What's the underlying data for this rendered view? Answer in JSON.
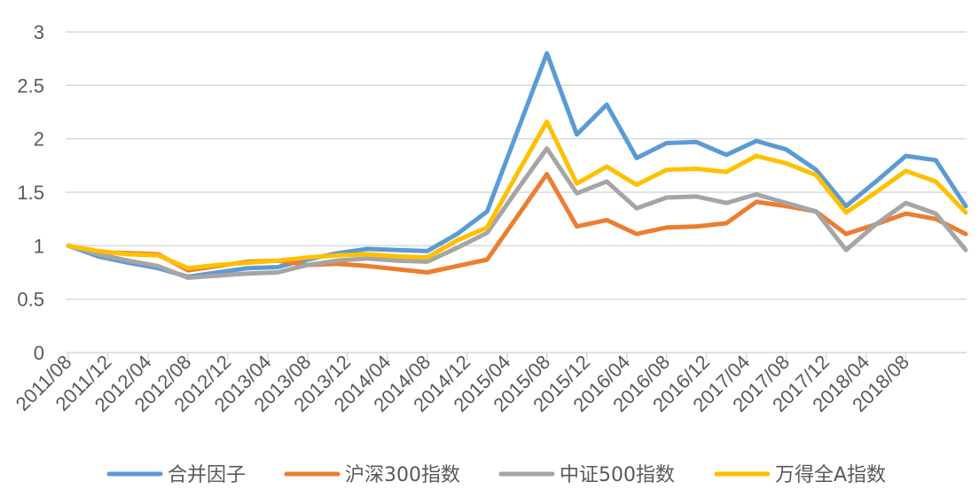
{
  "chart_data": {
    "type": "line",
    "title": "",
    "xlabel": "",
    "ylabel": "",
    "ylim": [
      0,
      3
    ],
    "yticks": [
      "0",
      "0.5",
      "1",
      "1.5",
      "2",
      "2.5",
      "3"
    ],
    "ytick_values": [
      0,
      0.5,
      1,
      1.5,
      2,
      2.5,
      3
    ],
    "grid": true,
    "legend_position": "bottom",
    "x_count": 31,
    "xtick_labels": [
      "2011/08",
      "2011/12",
      "2012/04",
      "2012/08",
      "2012/12",
      "2013/04",
      "2013/08",
      "2013/12",
      "2014/04",
      "2014/08",
      "2014/12",
      "2015/04",
      "2015/08",
      "2015/12",
      "2016/04",
      "2016/08",
      "2016/12",
      "2017/04",
      "2017/08",
      "2017/12",
      "2018/04",
      "2018/08"
    ],
    "xtick_indices": [
      0,
      1.33,
      2.67,
      4,
      5.33,
      6.67,
      8,
      9.33,
      10.67,
      12,
      13.33,
      14.67,
      16,
      17.33,
      18.67,
      20,
      21.33,
      22.67,
      24,
      25.33,
      26.67,
      28
    ],
    "series": [
      {
        "name": "合并因子",
        "color": "#5B9BD5",
        "values": [
          1.0,
          0.9,
          0.84,
          0.79,
          0.71,
          0.75,
          0.79,
          0.8,
          0.87,
          0.93,
          0.97,
          0.96,
          0.95,
          1.11,
          1.32,
          2.06,
          2.8,
          2.04,
          2.32,
          1.82,
          1.96,
          1.97,
          1.85,
          1.98,
          1.9,
          1.71,
          1.37,
          1.6,
          1.84,
          1.8,
          1.37
        ]
      },
      {
        "name": "沪深300指数",
        "color": "#ED7D31",
        "values": [
          1.0,
          0.94,
          0.93,
          0.92,
          0.77,
          0.81,
          0.85,
          0.86,
          0.82,
          0.83,
          0.81,
          0.78,
          0.75,
          0.81,
          0.87,
          1.27,
          1.67,
          1.18,
          1.24,
          1.11,
          1.17,
          1.18,
          1.21,
          1.41,
          1.37,
          1.32,
          1.11,
          1.2,
          1.3,
          1.25,
          1.11
        ]
      },
      {
        "name": "中证500指数",
        "color": "#A5A5A5",
        "values": [
          1.0,
          0.92,
          0.86,
          0.81,
          0.7,
          0.72,
          0.74,
          0.75,
          0.82,
          0.86,
          0.88,
          0.86,
          0.85,
          0.98,
          1.12,
          1.52,
          1.91,
          1.49,
          1.6,
          1.35,
          1.45,
          1.46,
          1.4,
          1.48,
          1.4,
          1.32,
          0.96,
          1.2,
          1.4,
          1.3,
          0.96
        ]
      },
      {
        "name": "万得全A指数",
        "color": "#FFC000",
        "values": [
          1.0,
          0.95,
          0.92,
          0.91,
          0.79,
          0.82,
          0.84,
          0.86,
          0.89,
          0.91,
          0.92,
          0.9,
          0.89,
          1.05,
          1.17,
          1.67,
          2.16,
          1.58,
          1.74,
          1.57,
          1.71,
          1.72,
          1.69,
          1.84,
          1.77,
          1.66,
          1.31,
          1.5,
          1.7,
          1.6,
          1.31
        ]
      }
    ]
  }
}
